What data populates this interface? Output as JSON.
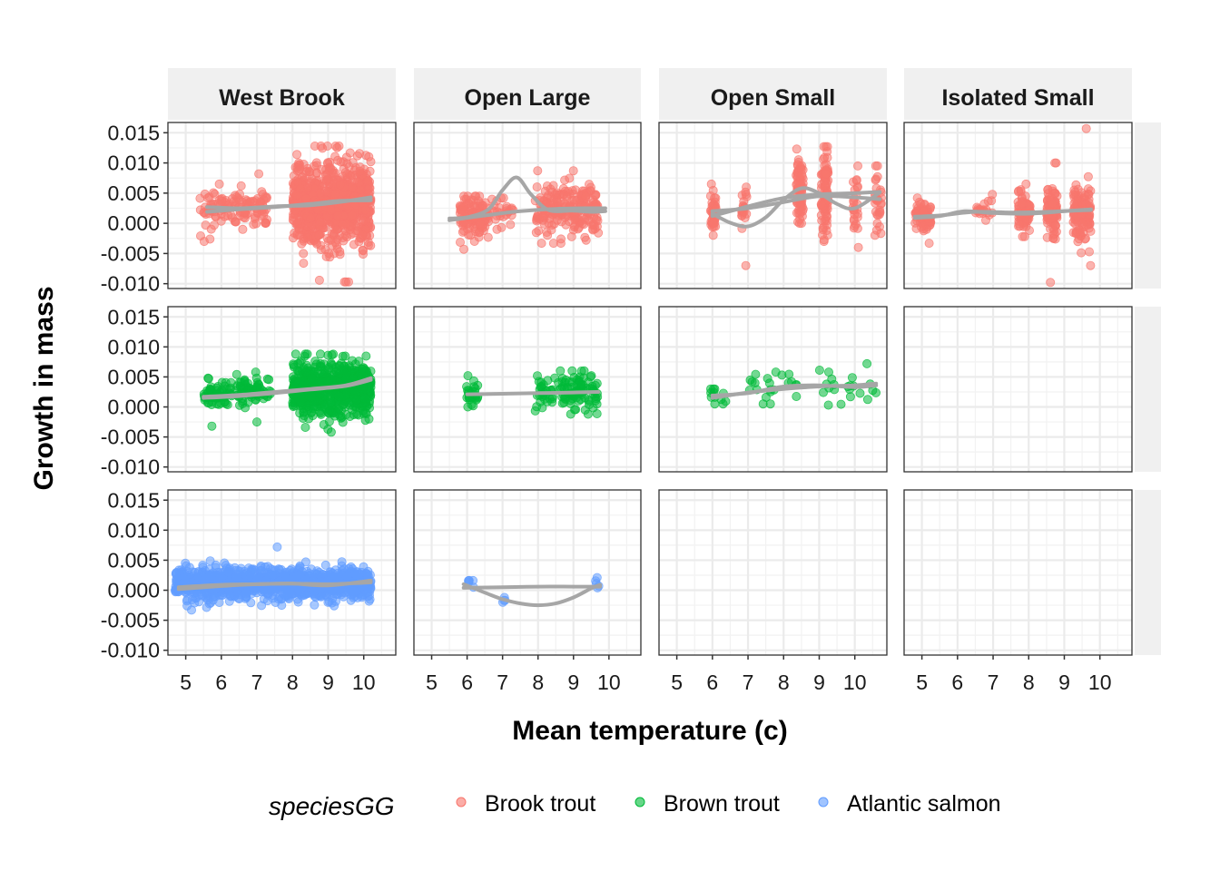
{
  "chart_data": {
    "type": "scatter",
    "xlabel": "Mean temperature (c)",
    "ylabel": "Growth in mass",
    "xlim": [
      4.5,
      10.9
    ],
    "ylim": [
      -0.0108,
      0.0167
    ],
    "x_ticks": [
      5,
      6,
      7,
      8,
      9,
      10
    ],
    "y_ticks": [
      -0.01,
      -0.005,
      0.0,
      0.005,
      0.01,
      0.015
    ],
    "y_tick_labels": [
      "-0.010",
      "-0.005",
      "0.000",
      "0.005",
      "0.010",
      "0.015"
    ],
    "grid": true,
    "facet_columns": [
      "West Brook",
      "Open Large",
      "Open Small",
      "Isolated Small"
    ],
    "facet_rows": [
      "Brook trout",
      "Brown trout",
      "Atlantic salmon"
    ],
    "legend": {
      "title": "speciesGG",
      "position": "bottom",
      "entries": [
        {
          "label": "Brook trout",
          "color": "#F8766D"
        },
        {
          "label": "Brown trout",
          "color": "#00BA38"
        },
        {
          "label": "Atlantic salmon",
          "color": "#619CFF"
        }
      ]
    },
    "smooth_color": "#A6A6A6",
    "panels": [
      {
        "row": 0,
        "col": 0,
        "groups": [
          {
            "x": [
              5.4,
              6.3
            ],
            "mean": 0.0026,
            "sd": 0.0017,
            "n": 50,
            "min": -0.003,
            "max": 0.0065
          },
          {
            "x": [
              6.3,
              7.0
            ],
            "mean": 0.0028,
            "sd": 0.0015,
            "n": 45,
            "min": -0.001,
            "max": 0.0062
          },
          {
            "x": [
              7.0,
              7.3
            ],
            "mean": 0.003,
            "sd": 0.0016,
            "n": 25,
            "min": 0.0,
            "max": 0.0082
          },
          {
            "x": [
              8.0,
              10.2
            ],
            "mean": 0.0033,
            "sd": 0.0033,
            "n": 900,
            "min": -0.0097,
            "max": 0.0128
          }
        ],
        "smooths": [
          {
            "x": [
              5.6,
              6.5,
              7.5,
              8.5,
              9.3,
              10.2
            ],
            "y": [
              0.0027,
              0.0025,
              0.0028,
              0.003,
              0.0035,
              0.0043
            ]
          },
          {
            "x": [
              5.6,
              6.5,
              7.5,
              8.5,
              9.3,
              10.2
            ],
            "y": [
              0.0019,
              0.0023,
              0.0027,
              0.0032,
              0.0037,
              0.0038
            ]
          }
        ]
      },
      {
        "row": 0,
        "col": 1,
        "groups": [
          {
            "x": [
              5.8,
              6.6
            ],
            "mean": 0.0012,
            "sd": 0.0017,
            "n": 120,
            "min": -0.0043,
            "max": 0.0045
          },
          {
            "x": [
              6.6,
              7.3
            ],
            "mean": 0.0018,
            "sd": 0.0012,
            "n": 25,
            "min": -0.001,
            "max": 0.0042
          },
          {
            "x": [
              7.9,
              9.7
            ],
            "mean": 0.0024,
            "sd": 0.0022,
            "n": 220,
            "min": -0.0033,
            "max": 0.0087
          }
        ],
        "smooths": [
          {
            "x": [
              5.5,
              6.0,
              6.6,
              7.0,
              7.4,
              7.8,
              8.3,
              9.0,
              9.5,
              9.9
            ],
            "y": [
              0.0008,
              0.001,
              0.0023,
              0.0055,
              0.0076,
              0.0048,
              0.0022,
              0.0021,
              0.0019,
              0.002
            ]
          },
          {
            "x": [
              5.5,
              6.5,
              7.5,
              8.5,
              9.5,
              9.9
            ],
            "y": [
              0.0005,
              0.0013,
              0.002,
              0.0024,
              0.0025,
              0.0025
            ]
          }
        ]
      },
      {
        "row": 0,
        "col": 2,
        "groups": [
          {
            "x": [
              5.95,
              6.1
            ],
            "mean": 0.0022,
            "sd": 0.0017,
            "n": 40,
            "min": -0.002,
            "max": 0.0065
          },
          {
            "x": [
              6.8,
              7.0
            ],
            "mean": 0.0028,
            "sd": 0.0015,
            "n": 20,
            "min": -0.007,
            "max": 0.006
          },
          {
            "x": [
              8.35,
              8.55
            ],
            "mean": 0.0055,
            "sd": 0.0025,
            "n": 70,
            "min": 0.0,
            "max": 0.0123
          },
          {
            "x": [
              9.05,
              9.25
            ],
            "mean": 0.0052,
            "sd": 0.0035,
            "n": 90,
            "min": -0.003,
            "max": 0.0127
          },
          {
            "x": [
              9.95,
              10.1
            ],
            "mean": 0.003,
            "sd": 0.0025,
            "n": 25,
            "min": -0.004,
            "max": 0.0095
          },
          {
            "x": [
              10.55,
              10.75
            ],
            "mean": 0.004,
            "sd": 0.0025,
            "n": 30,
            "min": -0.002,
            "max": 0.0095
          }
        ],
        "smooths": [
          {
            "x": [
              6.0,
              6.5,
              7.0,
              7.5,
              8.0,
              8.5,
              9.0,
              9.5,
              10.0,
              10.7
            ],
            "y": [
              0.0016,
              0.0001,
              -0.0005,
              0.001,
              0.0039,
              0.0058,
              0.005,
              0.0032,
              0.0025,
              0.0051
            ]
          },
          {
            "x": [
              6.0,
              7.0,
              8.0,
              9.0,
              10.0,
              10.7
            ],
            "y": [
              0.0012,
              0.0028,
              0.0042,
              0.0048,
              0.005,
              0.0052
            ]
          },
          {
            "x": [
              6.0,
              7.0,
              8.0,
              9.0,
              10.0,
              10.7
            ],
            "y": [
              0.002,
              0.0025,
              0.0035,
              0.0045,
              0.0043,
              0.004
            ]
          }
        ]
      },
      {
        "row": 0,
        "col": 3,
        "groups": [
          {
            "x": [
              4.8,
              5.25
            ],
            "mean": 0.0012,
            "sd": 0.001,
            "n": 80,
            "min": -0.0033,
            "max": 0.0042
          },
          {
            "x": [
              6.5,
              7.0
            ],
            "mean": 0.0022,
            "sd": 0.0008,
            "n": 20,
            "min": 0.0005,
            "max": 0.0048
          },
          {
            "x": [
              7.7,
              8.05
            ],
            "mean": 0.0018,
            "sd": 0.0015,
            "n": 80,
            "min": -0.0022,
            "max": 0.0065
          },
          {
            "x": [
              8.5,
              8.8
            ],
            "mean": 0.002,
            "sd": 0.0022,
            "n": 100,
            "min": -0.0098,
            "max": 0.01
          },
          {
            "x": [
              9.25,
              9.75
            ],
            "mean": 0.0018,
            "sd": 0.0022,
            "n": 120,
            "min": -0.007,
            "max": 0.0157
          }
        ],
        "smooths": [
          {
            "x": [
              4.8,
              5.5,
              6.5,
              7.5,
              8.5,
              9.2,
              9.75
            ],
            "y": [
              0.0011,
              0.0013,
              0.0019,
              0.0018,
              0.0019,
              0.0021,
              0.0022
            ]
          },
          {
            "x": [
              4.8,
              5.5,
              6.2,
              7.0,
              8.0,
              9.0,
              9.75
            ],
            "y": [
              0.0009,
              0.0012,
              0.002,
              0.0017,
              0.0016,
              0.002,
              0.0023
            ]
          }
        ]
      },
      {
        "row": 1,
        "col": 0,
        "groups": [
          {
            "x": [
              5.5,
              6.3
            ],
            "mean": 0.0022,
            "sd": 0.0012,
            "n": 60,
            "min": -0.0032,
            "max": 0.0048
          },
          {
            "x": [
              6.4,
              7.4
            ],
            "mean": 0.0025,
            "sd": 0.0012,
            "n": 70,
            "min": -0.0025,
            "max": 0.0058
          },
          {
            "x": [
              8.0,
              10.2
            ],
            "mean": 0.0032,
            "sd": 0.0022,
            "n": 700,
            "min": -0.0042,
            "max": 0.0088
          }
        ],
        "smooths": [
          {
            "x": [
              5.5,
              6.5,
              7.5,
              8.5,
              9.5,
              10.2
            ],
            "y": [
              0.0017,
              0.002,
              0.0025,
              0.003,
              0.0036,
              0.0048
            ]
          },
          {
            "x": [
              5.5,
              6.5,
              7.5,
              8.5,
              9.5,
              10.2
            ],
            "y": [
              0.0015,
              0.0018,
              0.0023,
              0.0029,
              0.0035,
              0.0045
            ]
          }
        ]
      },
      {
        "row": 1,
        "col": 1,
        "groups": [
          {
            "x": [
              5.95,
              6.3
            ],
            "mean": 0.0022,
            "sd": 0.0012,
            "n": 25,
            "min": 0.0,
            "max": 0.0052
          },
          {
            "x": [
              7.9,
              9.7
            ],
            "mean": 0.0025,
            "sd": 0.0017,
            "n": 120,
            "min": -0.0012,
            "max": 0.006
          }
        ],
        "smooths": [
          {
            "x": [
              6.0,
              7.0,
              8.0,
              9.0,
              9.7
            ],
            "y": [
              0.0021,
              0.0022,
              0.0023,
              0.0024,
              0.0025
            ]
          }
        ]
      },
      {
        "row": 1,
        "col": 2,
        "groups": [
          {
            "x": [
              5.95,
              6.5
            ],
            "mean": 0.0017,
            "sd": 0.0009,
            "n": 10,
            "min": 0.0005,
            "max": 0.003
          },
          {
            "x": [
              7.0,
              8.5
            ],
            "mean": 0.0034,
            "sd": 0.0012,
            "n": 20,
            "min": 0.0005,
            "max": 0.0058
          },
          {
            "x": [
              9.0,
              10.7
            ],
            "mean": 0.0035,
            "sd": 0.0012,
            "n": 20,
            "min": 0.0003,
            "max": 0.0072
          }
        ],
        "smooths": [
          {
            "x": [
              6.0,
              7.0,
              8.0,
              9.0,
              10.0,
              10.6
            ],
            "y": [
              0.0015,
              0.0024,
              0.003,
              0.0034,
              0.0036,
              0.0039
            ]
          },
          {
            "x": [
              6.0,
              7.0,
              8.0,
              9.0,
              10.0,
              10.6
            ],
            "y": [
              0.0019,
              0.0023,
              0.0034,
              0.0036,
              0.0033,
              0.0036
            ]
          }
        ]
      },
      {
        "row": 2,
        "col": 0,
        "groups": [
          {
            "x": [
              4.7,
              10.2
            ],
            "mean": 0.0011,
            "sd": 0.0012,
            "n": 1300,
            "min": -0.0033,
            "max": 0.0072
          }
        ],
        "smooths": [
          {
            "x": [
              4.8,
              6.0,
              7.0,
              8.0,
              9.0,
              10.2
            ],
            "y": [
              0.0005,
              0.0009,
              0.001,
              0.0011,
              0.0008,
              0.0016
            ]
          },
          {
            "x": [
              4.8,
              6.0,
              7.0,
              8.0,
              9.0,
              10.2
            ],
            "y": [
              0.0002,
              0.0007,
              0.001,
              0.0011,
              0.001,
              0.0013
            ]
          }
        ]
      },
      {
        "row": 2,
        "col": 1,
        "groups": [
          {
            "x": [
              5.9,
              6.2
            ],
            "mean": 0.0011,
            "sd": 0.0004,
            "n": 4,
            "min": 0.0005,
            "max": 0.0016
          },
          {
            "x": [
              7.0,
              7.1
            ],
            "mean": -0.0016,
            "sd": 0.0003,
            "n": 2,
            "min": -0.002,
            "max": -0.0012
          },
          {
            "x": [
              9.6,
              9.75
            ],
            "mean": 0.001,
            "sd": 0.0005,
            "n": 3,
            "min": 0.0004,
            "max": 0.0021
          }
        ],
        "smooths": [
          {
            "x": [
              5.9,
              6.5,
              7.0,
              7.5,
              8.0,
              8.5,
              9.0,
              9.5,
              9.75
            ],
            "y": [
              0.001,
              -0.0004,
              -0.0015,
              -0.0022,
              -0.0025,
              -0.0022,
              -0.0012,
              0.0003,
              0.0009
            ]
          },
          {
            "x": [
              5.9,
              7.0,
              8.0,
              9.0,
              9.75
            ],
            "y": [
              0.0004,
              0.0005,
              0.0006,
              0.0006,
              0.0006
            ]
          }
        ]
      }
    ]
  }
}
